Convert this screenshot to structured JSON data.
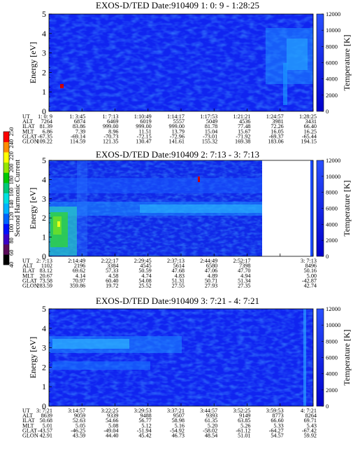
{
  "colorbar": {
    "label": "Second Harmonic Current",
    "ticks": [
      "40",
      "60",
      "80",
      "100",
      "120",
      "140",
      "160",
      "180",
      "200",
      "220",
      "240",
      "250"
    ],
    "colors": [
      "#000000",
      "#5a0a5a",
      "#3b00c8",
      "#0010ff",
      "#0064ff",
      "#00b4ff",
      "#00e0e0",
      "#00c878",
      "#00c800",
      "#96e600",
      "#ffff00",
      "#ff8c00",
      "#ff0000"
    ]
  },
  "panels": [
    {
      "title": "EXOS-D/TED   Date:910409  1: 0: 9 - 1:28:25",
      "y_label": "Energy [eV]",
      "y_ticks": [
        "0",
        "1",
        "2",
        "3",
        "4",
        "5"
      ],
      "right_label": "Temperature [K]",
      "right_ticks": [
        "0",
        "2000",
        "4000",
        "6000",
        "8000",
        "10000",
        "12000"
      ],
      "row_labels": [
        "UT",
        "ALT",
        "ILAT",
        "MLT",
        "GLAT",
        "GLON"
      ],
      "columns": [
        [
          "1: 0: 9",
          "7264",
          "81.39",
          "6.86",
          "-67.35",
          "109.22"
        ],
        [
          "1: 3:45",
          "6874",
          "83.86",
          "7.39",
          "-69.14",
          "114.59"
        ],
        [
          "1: 7:13",
          "6469",
          "999.00",
          "8.96",
          "-70.73",
          "121.35"
        ],
        [
          "1:10:49",
          "6019",
          "999.00",
          "11.51",
          "-72.15",
          "130.47"
        ],
        [
          "1:14:17",
          "5557",
          "999.00",
          "13.79",
          "-72.96",
          "141.61"
        ],
        [
          "1:17:53",
          "5049",
          "81.78",
          "15.04",
          "-73.01",
          "155.32"
        ],
        [
          "1:21:21",
          "4536",
          "77.48",
          "15.67",
          "-71.92",
          "169.38"
        ],
        [
          "1:24:57",
          "3981",
          "72.26",
          "16.05",
          "-69.37",
          "183.06"
        ],
        [
          "1:28:25",
          "3431",
          "66.40",
          "16.25",
          "-65.44",
          "194.15"
        ]
      ]
    },
    {
      "title": "EXOS-D/TED   Date:910409  2: 7:13 - 3: 7:13",
      "y_label": "Energy [eV]",
      "y_ticks": [
        "0",
        "1",
        "2",
        "3",
        "4",
        "5"
      ],
      "right_label": "Temperature [K]",
      "right_ticks": [
        "0",
        "2000",
        "4000",
        "6000",
        "8000",
        "10000",
        "12000"
      ],
      "row_labels": [
        "UT",
        "ALT",
        "ILAT",
        "MLT",
        "GLAT",
        "GLON"
      ],
      "columns": [
        [
          "2: 7:13",
          "1102",
          "83.12",
          "20.67",
          "73.58",
          "283.59"
        ],
        [
          "2:14:49",
          "2196",
          "69.62",
          "4.14",
          "70.97",
          "359.86"
        ],
        [
          "2:22:17",
          "3384",
          "57.33",
          "4.58",
          "60.40",
          "19.72"
        ],
        [
          "2:29:45",
          "4545",
          "50.59",
          "4.74",
          "54.08",
          "25.52"
        ],
        [
          "2:37:13",
          "5614",
          "47.68",
          "4.83",
          "51.31",
          "27.55"
        ],
        [
          "2:44:49",
          "6580",
          "47.06",
          "4.89",
          "50.71",
          "27.93"
        ],
        [
          "2:52:17",
          "7398",
          "47.70",
          "4.94",
          "51.34",
          "27.35"
        ],
        [
          "",
          "",
          " ",
          "",
          "",
          ""
        ],
        [
          "3: 7:13",
          "8496",
          "50.16",
          "5.00",
          "-42.87",
          "42.74"
        ]
      ]
    },
    {
      "title": "EXOS-D/TED   Date:910409  3: 7:21 - 4: 7:21",
      "y_label": "Energy [eV]",
      "y_ticks": [
        "0",
        "1",
        "2",
        "3",
        "4",
        "5"
      ],
      "right_label": "Temperature [K]",
      "right_ticks": [
        "0",
        "2000",
        "4000",
        "6000",
        "8000",
        "10000",
        "12000"
      ],
      "row_labels": [
        "UT",
        "ALT",
        "ILAT",
        "MLT",
        "GLAT",
        "GLON"
      ],
      "columns": [
        [
          "3: 7:21",
          "8639",
          "50.68",
          "5.01",
          "-43.57",
          "42.91"
        ],
        [
          "3:14:57",
          "9059",
          "52.63",
          "5.05",
          "-46.25",
          "43.59"
        ],
        [
          "3:22:25",
          "9339",
          "54.66",
          "5.08",
          "-49.04",
          "44.40"
        ],
        [
          "3:29:53",
          "9488",
          "56.77",
          "5.12",
          "-51.94",
          "45.42"
        ],
        [
          "3:37:21",
          "9507",
          "58.98",
          "5.16",
          "-54.92",
          "46.73"
        ],
        [
          "3:44:57",
          "9393",
          "61.35",
          "5.20",
          "-58.02",
          "48.54"
        ],
        [
          "3:52:25",
          "9149",
          "63.85",
          "5.26",
          "-61.12",
          "51.01"
        ],
        [
          "3:59:53",
          "8773",
          "66.60",
          "5.33",
          "-64.27",
          "54.57"
        ],
        [
          "4: 7:21",
          "8264",
          "69.71",
          "5.43",
          "-67.42",
          "59.92"
        ]
      ]
    }
  ],
  "chart_data": {
    "type": "heatmap",
    "panels": [
      {
        "title": "EXOS-D/TED   Date:910409  1: 0: 9 - 1:28:25",
        "x_range": [
          "1: 0: 9",
          "1:28:25"
        ],
        "ylim": [
          0,
          5
        ],
        "y2lim": [
          0,
          12000
        ],
        "ylabel": "Energy [eV]",
        "y2label": "Temperature [K]"
      },
      {
        "title": "EXOS-D/TED   Date:910409  2: 7:13 - 3: 7:13",
        "x_range": [
          "2: 7:13",
          "3: 7:13"
        ],
        "ylim": [
          0,
          5
        ],
        "y2lim": [
          0,
          12000
        ],
        "ylabel": "Energy [eV]",
        "y2label": "Temperature [K]"
      },
      {
        "title": "EXOS-D/TED   Date:910409  3: 7:21 - 4: 7:21",
        "x_range": [
          "3: 7:21",
          "4: 7:21"
        ],
        "ylim": [
          0,
          5
        ],
        "y2lim": [
          0,
          12000
        ],
        "ylabel": "Energy [eV]",
        "y2label": "Temperature [K]"
      }
    ],
    "colorbar_range": [
      40,
      250
    ]
  }
}
